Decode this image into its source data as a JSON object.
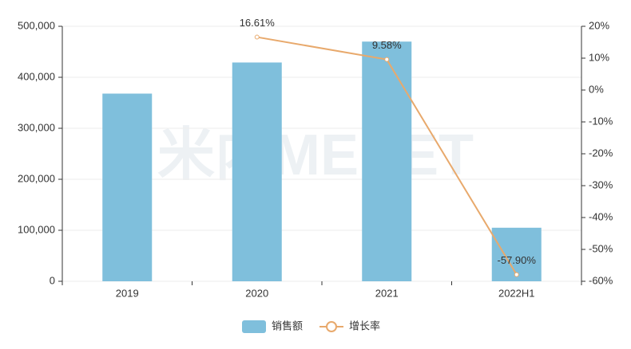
{
  "chart_data": {
    "type": "bar",
    "watermark": "米内MENET",
    "categories": [
      "2019",
      "2020",
      "2021",
      "2022H1"
    ],
    "series": [
      {
        "name": "销售额",
        "type": "bar",
        "color": "#7fbfdc",
        "values": [
          368000,
          429000,
          470000,
          105000
        ]
      },
      {
        "name": "增长率",
        "type": "line",
        "axis": "y2",
        "color": "#e8a96c",
        "values": [
          null,
          16.61,
          9.58,
          -57.9
        ],
        "value_labels": [
          null,
          "16.61%",
          "9.58%",
          "-57.90%"
        ]
      }
    ],
    "ylim": [
      0,
      500000
    ],
    "yticks": [
      0,
      {
        "value": 100000,
        "label": "100,000"
      },
      {
        "value": 200000,
        "label": "200,000"
      },
      {
        "value": 300000,
        "label": "300,000"
      },
      {
        "value": 400000,
        "label": "400,000"
      },
      {
        "value": 500000,
        "label": "500,000"
      }
    ],
    "y2lim": [
      -60,
      20
    ],
    "y2ticks": [
      {
        "value": -60,
        "label": "-60%"
      },
      {
        "value": -50,
        "label": "-50%"
      },
      {
        "value": -40,
        "label": "-40%"
      },
      {
        "value": -30,
        "label": "-30%"
      },
      {
        "value": -20,
        "label": "-20%"
      },
      {
        "value": -10,
        "label": "-10%"
      },
      {
        "value": 0,
        "label": "0%"
      },
      {
        "value": 10,
        "label": "10%"
      },
      {
        "value": 20,
        "label": "20%"
      }
    ],
    "grid": true,
    "legend": "bottom"
  }
}
